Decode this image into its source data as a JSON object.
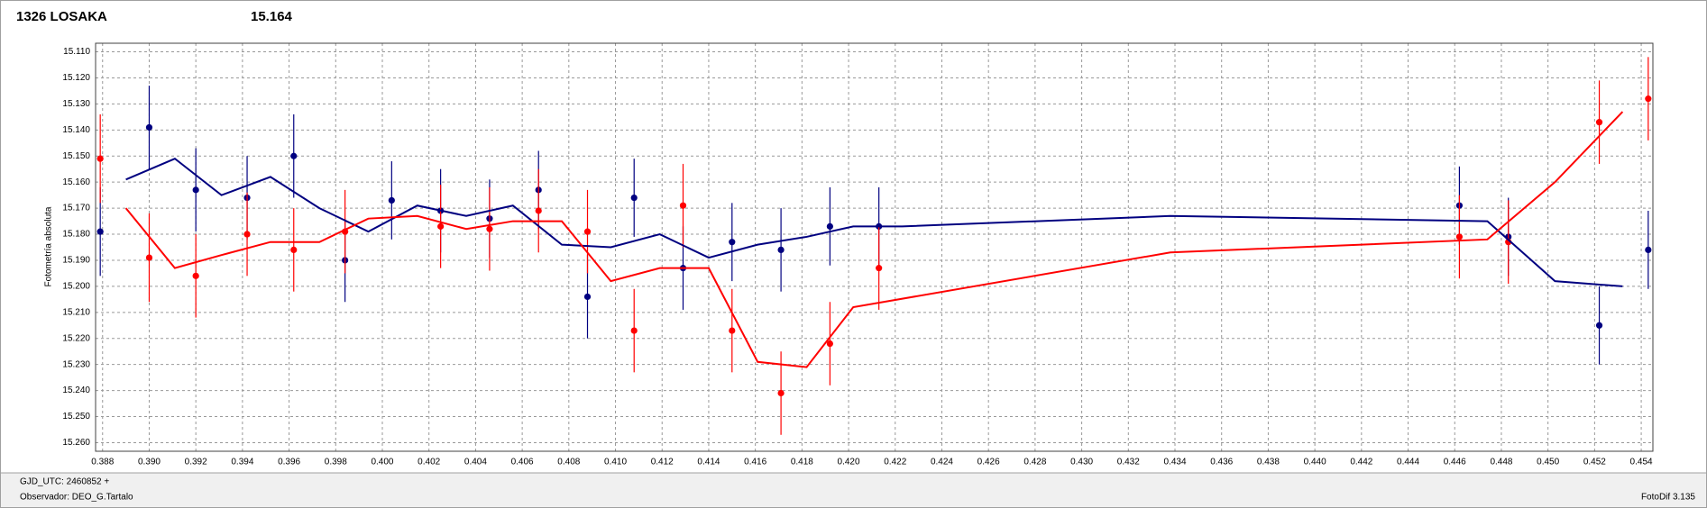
{
  "chart_data": {
    "type": "scatter",
    "title": "1326 LOSAKA",
    "title_color": "#ff0000",
    "subtitle": "15.164",
    "subtitle_color": "#000080",
    "y_label": "Fotometría absoluta",
    "footer_left_1": "GJD_UTC: 2460852 +",
    "footer_left_2": "Observador: DEO_G.Tartalo",
    "footer_right": "FotoDif 3.135",
    "xlim": [
      0.3877,
      0.4545
    ],
    "ylim": [
      15.1067,
      15.2633
    ],
    "y_inverted": true,
    "grid": true,
    "xticks": [
      {
        "value": 0.388,
        "label": "0.388"
      },
      {
        "value": 0.39,
        "label": "0.390"
      },
      {
        "value": 0.392,
        "label": "0.392"
      },
      {
        "value": 0.394,
        "label": "0.394"
      },
      {
        "value": 0.396,
        "label": "0.396"
      },
      {
        "value": 0.398,
        "label": "0.398"
      },
      {
        "value": 0.4,
        "label": "0.400"
      },
      {
        "value": 0.402,
        "label": "0.402"
      },
      {
        "value": 0.404,
        "label": "0.404"
      },
      {
        "value": 0.406,
        "label": "0.406"
      },
      {
        "value": 0.408,
        "label": "0.408"
      },
      {
        "value": 0.41,
        "label": "0.410"
      },
      {
        "value": 0.412,
        "label": "0.412"
      },
      {
        "value": 0.414,
        "label": "0.414"
      },
      {
        "value": 0.416,
        "label": "0.416"
      },
      {
        "value": 0.418,
        "label": "0.418"
      },
      {
        "value": 0.42,
        "label": "0.420"
      },
      {
        "value": 0.422,
        "label": "0.422"
      },
      {
        "value": 0.424,
        "label": "0.424"
      },
      {
        "value": 0.426,
        "label": "0.426"
      },
      {
        "value": 0.428,
        "label": "0.428"
      },
      {
        "value": 0.43,
        "label": "0.430"
      },
      {
        "value": 0.432,
        "label": "0.432"
      },
      {
        "value": 0.434,
        "label": "0.434"
      },
      {
        "value": 0.436,
        "label": "0.436"
      },
      {
        "value": 0.438,
        "label": "0.438"
      },
      {
        "value": 0.44,
        "label": "0.440"
      },
      {
        "value": 0.442,
        "label": "0.442"
      },
      {
        "value": 0.444,
        "label": "0.444"
      },
      {
        "value": 0.446,
        "label": "0.446"
      },
      {
        "value": 0.448,
        "label": "0.448"
      },
      {
        "value": 0.45,
        "label": "0.450"
      },
      {
        "value": 0.452,
        "label": "0.452"
      },
      {
        "value": 0.454,
        "label": "0.454"
      }
    ],
    "yticks": [
      {
        "value": 15.11,
        "label": "15.110"
      },
      {
        "value": 15.12,
        "label": "15.120"
      },
      {
        "value": 15.13,
        "label": "15.130"
      },
      {
        "value": 15.14,
        "label": "15.140"
      },
      {
        "value": 15.15,
        "label": "15.150"
      },
      {
        "value": 15.16,
        "label": "15.160"
      },
      {
        "value": 15.17,
        "label": "15.170"
      },
      {
        "value": 15.18,
        "label": "15.180"
      },
      {
        "value": 15.19,
        "label": "15.190"
      },
      {
        "value": 15.2,
        "label": "15.200"
      },
      {
        "value": 15.21,
        "label": "15.210"
      },
      {
        "value": 15.22,
        "label": "15.220"
      },
      {
        "value": 15.23,
        "label": "15.230"
      },
      {
        "value": 15.24,
        "label": "15.240"
      },
      {
        "value": 15.25,
        "label": "15.250"
      },
      {
        "value": 15.26,
        "label": "15.260"
      }
    ],
    "series": [
      {
        "type": "scatter",
        "color": "#000080",
        "x": [
          0.3879,
          0.39,
          0.392,
          0.3942,
          0.3962,
          0.3984,
          0.4004,
          0.4025,
          0.4046,
          0.4067,
          0.4088,
          0.4108,
          0.4129,
          0.415,
          0.4171,
          0.4192,
          0.4213,
          0.4462,
          0.4483,
          0.4522,
          0.4543
        ],
        "values": [
          15.179,
          15.139,
          15.163,
          15.166,
          15.15,
          15.19,
          15.167,
          15.171,
          15.174,
          15.163,
          15.204,
          15.166,
          15.193,
          15.183,
          15.186,
          15.177,
          15.177,
          15.169,
          15.181,
          15.215,
          15.186
        ],
        "errors": [
          0.017,
          0.016,
          0.016,
          0.016,
          0.016,
          0.016,
          0.015,
          0.016,
          0.015,
          0.015,
          0.016,
          0.015,
          0.016,
          0.015,
          0.016,
          0.015,
          0.015,
          0.015,
          0.015,
          0.015,
          0.015
        ]
      },
      {
        "type": "scatter",
        "color": "#ff0000",
        "x": [
          0.3879,
          0.39,
          0.392,
          0.3942,
          0.3962,
          0.3984,
          0.4025,
          0.4046,
          0.4067,
          0.4088,
          0.4108,
          0.4129,
          0.415,
          0.4171,
          0.4192,
          0.4213,
          0.4462,
          0.4483,
          0.4522,
          0.4543
        ],
        "values": [
          15.151,
          15.189,
          15.196,
          15.18,
          15.186,
          15.179,
          15.177,
          15.178,
          15.171,
          15.179,
          15.217,
          15.169,
          15.217,
          15.241,
          15.222,
          15.193,
          15.181,
          15.183,
          15.137,
          15.128
        ],
        "errors": [
          0.017,
          0.017,
          0.016,
          0.016,
          0.016,
          0.016,
          0.016,
          0.016,
          0.016,
          0.016,
          0.016,
          0.016,
          0.016,
          0.016,
          0.016,
          0.016,
          0.016,
          0.016,
          0.016,
          0.016
        ]
      },
      {
        "type": "line",
        "color": "#000080",
        "x": [
          0.389,
          0.3911,
          0.3931,
          0.3952,
          0.3973,
          0.3994,
          0.4015,
          0.4036,
          0.4056,
          0.4077,
          0.4098,
          0.4119,
          0.414,
          0.4161,
          0.4182,
          0.4202,
          0.4223,
          0.4338,
          0.4474,
          0.4503,
          0.4532
        ],
        "values": [
          15.159,
          15.151,
          15.165,
          15.158,
          15.17,
          15.179,
          15.169,
          15.173,
          15.169,
          15.184,
          15.185,
          15.18,
          15.189,
          15.184,
          15.181,
          15.177,
          15.177,
          15.173,
          15.175,
          15.198,
          15.2
        ]
      },
      {
        "type": "line",
        "color": "#ff0000",
        "x": [
          0.389,
          0.3911,
          0.3931,
          0.3952,
          0.3973,
          0.3994,
          0.4015,
          0.4036,
          0.4056,
          0.4077,
          0.4098,
          0.4119,
          0.414,
          0.4161,
          0.4182,
          0.4202,
          0.4338,
          0.4474,
          0.4503,
          0.4532
        ],
        "values": [
          15.17,
          15.193,
          15.188,
          15.183,
          15.183,
          15.174,
          15.173,
          15.178,
          15.175,
          15.175,
          15.198,
          15.193,
          15.193,
          15.229,
          15.231,
          15.208,
          15.187,
          15.182,
          15.16,
          15.133
        ]
      }
    ]
  }
}
